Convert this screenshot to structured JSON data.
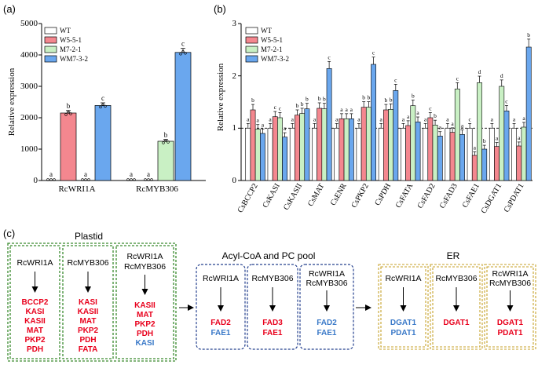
{
  "colors": {
    "WT": "#ffffff",
    "W5-5-1": "#f4878f",
    "M7-2-1": "#c9f0c4",
    "WM7-3-2": "#6aa7ee",
    "red_gene": "#e8001c",
    "blue_gene": "#3a79c8",
    "green_box": "#3a8a2e",
    "blue_box": "#24408e",
    "gold_box": "#c7a22a"
  },
  "panel_labels": [
    "(a)",
    "(b)",
    "(c)"
  ],
  "chart_data": [
    {
      "type": "bar",
      "ylabel": "Relative expression",
      "ylim": [
        0,
        5000
      ],
      "yticks": [
        "0",
        "1000",
        "2000",
        "3000",
        "4000",
        "5000"
      ],
      "categories": [
        "RcWRI1A",
        "RcMYB306"
      ],
      "legend_position": "top-left",
      "series": [
        {
          "name": "WT",
          "values": [
            0,
            0
          ],
          "sig": [
            "a",
            "a"
          ]
        },
        {
          "name": "W5-5-1",
          "values": [
            2150,
            0
          ],
          "sig": [
            "b",
            "a"
          ]
        },
        {
          "name": "M7-2-1",
          "values": [
            0,
            1250
          ],
          "sig": [
            "a",
            "b"
          ]
        },
        {
          "name": "WM7-3-2",
          "values": [
            2390,
            4080
          ],
          "sig": [
            "c",
            "c"
          ]
        }
      ]
    },
    {
      "type": "bar",
      "ylabel": "Relative expression",
      "ylim": [
        0,
        3
      ],
      "yticks": [
        "0",
        "1",
        "2",
        "3"
      ],
      "reference_line": 1,
      "legend_position": "top-left",
      "categories": [
        "CsBCCP2",
        "CsKASI",
        "CsKASII",
        "CsMAT",
        "CsENR",
        "CsPKP2",
        "CsPDH",
        "CsFATA",
        "CsFAD2",
        "CsFAD3",
        "CsFAE1",
        "CsDGAT1",
        "CsPDAT1"
      ],
      "series": [
        {
          "name": "WT",
          "values": [
            1,
            1,
            1,
            1,
            1,
            1,
            1,
            1,
            1,
            1,
            1,
            1,
            1
          ],
          "sig": [
            "a",
            "a",
            "a",
            "a",
            "a",
            "a",
            "a",
            "a",
            "a",
            "a",
            "c",
            "a",
            "a"
          ]
        },
        {
          "name": "W5-5-1",
          "values": [
            1.35,
            1.22,
            1.25,
            1.38,
            1.18,
            1.4,
            1.35,
            1.05,
            1.2,
            0.92,
            0.48,
            0.65,
            0.66
          ]
        },
        {
          "name": "M7-2-1",
          "values": [
            0.98,
            1.2,
            1.28,
            1.37,
            1.18,
            1.4,
            1.36,
            1.43,
            1.06,
            1.75,
            1.87,
            1.8,
            1.02
          ]
        },
        {
          "name": "WM7-3-2",
          "values": [
            0.9,
            0.83,
            1.37,
            2.14,
            1.18,
            2.22,
            1.72,
            1.12,
            0.85,
            0.88,
            0.6,
            1.33,
            2.55
          ]
        }
      ],
      "sig": [
        [
          "a",
          "b",
          "a",
          "a"
        ],
        [
          "a",
          "c",
          "c",
          "a"
        ],
        [
          "a",
          "b",
          "b",
          "b"
        ],
        [
          "a",
          "b",
          "b",
          "c"
        ],
        [
          "a",
          "a",
          "a",
          "a"
        ],
        [
          "a",
          "b",
          "b",
          "c"
        ],
        [
          "a",
          "b",
          "b",
          "c"
        ],
        [
          "a",
          "a",
          "b",
          "a"
        ],
        [
          "a",
          "c",
          "b",
          "a"
        ],
        [
          "a",
          "a",
          "c",
          "a"
        ],
        [
          "c",
          "a",
          "d",
          "b"
        ],
        [
          "a",
          "a",
          "d",
          "c"
        ],
        [
          "a",
          "a",
          "a",
          "b"
        ]
      ]
    }
  ],
  "pathway": {
    "groups": [
      {
        "title": "Plastid",
        "boxes": [
          {
            "regs": [
              "RcWRI1A"
            ],
            "genes": [
              {
                "t": "BCCP2",
                "c": "red"
              },
              {
                "t": "KASI",
                "c": "red"
              },
              {
                "t": "KASII",
                "c": "red"
              },
              {
                "t": "MAT",
                "c": "red"
              },
              {
                "t": "PKP2",
                "c": "red"
              },
              {
                "t": "PDH",
                "c": "red"
              }
            ]
          },
          {
            "regs": [
              "RcMYB306"
            ],
            "genes": [
              {
                "t": "KASI",
                "c": "red"
              },
              {
                "t": "KASII",
                "c": "red"
              },
              {
                "t": "MAT",
                "c": "red"
              },
              {
                "t": "PKP2",
                "c": "red"
              },
              {
                "t": "PDH",
                "c": "red"
              },
              {
                "t": "FATA",
                "c": "red"
              }
            ]
          },
          {
            "regs": [
              "RcWRI1A",
              "RcMYB306"
            ],
            "genes": [
              {
                "t": "KASII",
                "c": "red"
              },
              {
                "t": "MAT",
                "c": "red"
              },
              {
                "t": "PKP2",
                "c": "red"
              },
              {
                "t": "PDH",
                "c": "red"
              },
              {
                "t": "KASI",
                "c": "blue"
              }
            ]
          }
        ]
      },
      {
        "title": "Acyl-CoA and PC pool",
        "boxes": [
          {
            "regs": [
              "RcWRI1A"
            ],
            "genes": [
              {
                "t": "FAD2",
                "c": "red"
              },
              {
                "t": "FAE1",
                "c": "blue"
              }
            ]
          },
          {
            "regs": [
              "RcMYB306"
            ],
            "genes": [
              {
                "t": "FAD3",
                "c": "red"
              },
              {
                "t": "FAE1",
                "c": "red"
              }
            ]
          },
          {
            "regs": [
              "RcWRI1A",
              "RcMYB306"
            ],
            "genes": [
              {
                "t": "FAD2",
                "c": "blue"
              },
              {
                "t": "FAE1",
                "c": "blue"
              }
            ]
          }
        ]
      },
      {
        "title": "ER",
        "boxes": [
          {
            "regs": [
              "RcWRI1A"
            ],
            "genes": [
              {
                "t": "DGAT1",
                "c": "blue"
              },
              {
                "t": "PDAT1",
                "c": "blue"
              }
            ]
          },
          {
            "regs": [
              "RcMYB306"
            ],
            "genes": [
              {
                "t": "DGAT1",
                "c": "red"
              }
            ]
          },
          {
            "regs": [
              "RcWRI1A",
              "RcMYB306"
            ],
            "genes": [
              {
                "t": "DGAT1",
                "c": "red"
              },
              {
                "t": "PDAT1",
                "c": "red"
              }
            ]
          }
        ]
      }
    ]
  }
}
